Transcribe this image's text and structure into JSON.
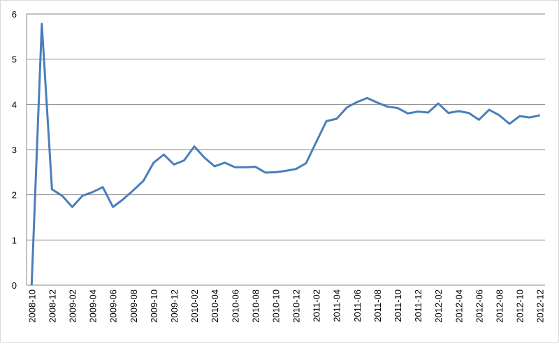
{
  "chart_data": {
    "type": "line",
    "categories": [
      "2008-10",
      null,
      "2008-12",
      null,
      "2009-02",
      null,
      "2009-04",
      null,
      "2009-06",
      null,
      "2009-08",
      null,
      "2009-10",
      null,
      "2009-12",
      null,
      "2010-02",
      null,
      "2010-04",
      null,
      "2010-06",
      null,
      "2010-08",
      null,
      "2010-10",
      null,
      "2010-12",
      null,
      "2011-02",
      null,
      "2011-04",
      null,
      "2011-06",
      null,
      "2011-08",
      null,
      "2011-10",
      null,
      "2011-12",
      null,
      "2012-02",
      null,
      "2012-04",
      null,
      "2012-06",
      null,
      "2012-08",
      null,
      "2012-10",
      null,
      "2012-12"
    ],
    "values": [
      0,
      5.78,
      2.12,
      1.98,
      1.73,
      1.98,
      2.06,
      2.17,
      1.73,
      1.9,
      2.1,
      2.31,
      2.71,
      2.89,
      2.67,
      2.76,
      3.07,
      2.82,
      2.63,
      2.71,
      2.61,
      2.61,
      2.62,
      2.49,
      2.5,
      2.53,
      2.57,
      2.7,
      3.17,
      3.63,
      3.68,
      3.93,
      4.05,
      4.14,
      4.04,
      3.95,
      3.92,
      3.8,
      3.84,
      3.82,
      4.02,
      3.81,
      3.85,
      3.81,
      3.66,
      3.88,
      3.76,
      3.57,
      3.74,
      3.71,
      3.76
    ],
    "color": "#4a7ebb",
    "ylim": [
      0,
      6
    ],
    "yticks": [
      0,
      1,
      2,
      3,
      4,
      5,
      6
    ],
    "grid": true
  }
}
